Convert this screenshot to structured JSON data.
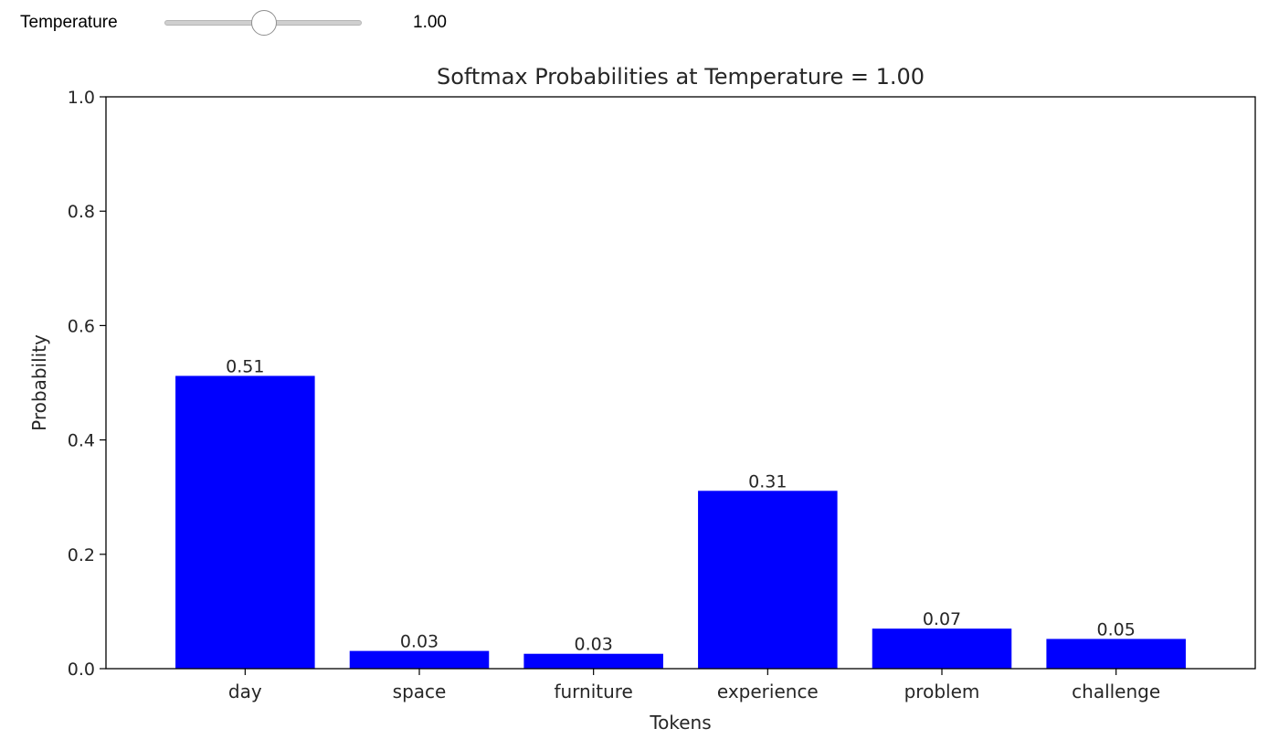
{
  "controls": {
    "slider_label": "Temperature",
    "slider_value_text": "1.00",
    "slider_min": 0.1,
    "slider_max": 2.0,
    "slider_value": 1.0
  },
  "chart_data": {
    "type": "bar",
    "title": "Softmax Probabilities at Temperature = 1.00",
    "xlabel": "Tokens",
    "ylabel": "Probability",
    "ylim": [
      0,
      1.0
    ],
    "yticks": [
      "0.0",
      "0.2",
      "0.4",
      "0.6",
      "0.8",
      "1.0"
    ],
    "ytick_values": [
      0,
      0.2,
      0.4,
      0.6,
      0.8,
      1.0
    ],
    "categories": [
      "day",
      "space",
      "furniture",
      "experience",
      "problem",
      "challenge"
    ],
    "values": [
      0.512,
      0.031,
      0.026,
      0.311,
      0.07,
      0.052
    ],
    "value_labels": [
      "0.51",
      "0.03",
      "0.03",
      "0.31",
      "0.07",
      "0.05"
    ],
    "bar_color": "#0000ff",
    "grid": false
  }
}
